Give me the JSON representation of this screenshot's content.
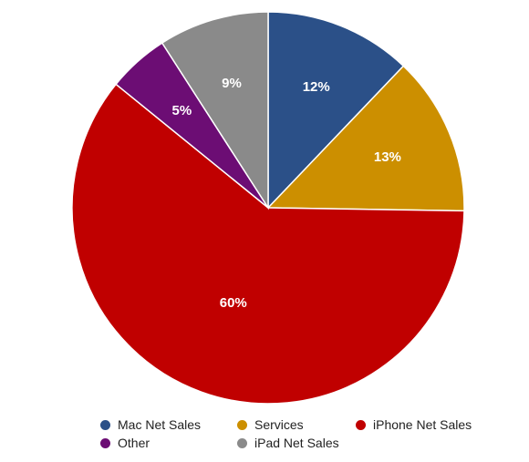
{
  "chart_data": {
    "type": "pie",
    "title": "",
    "start_angle_deg": 0,
    "direction": "clockwise",
    "slices": [
      {
        "label": "Mac Net Sales",
        "value": 12,
        "display": "12%",
        "color": "#2b5088"
      },
      {
        "label": "Services",
        "value": 13,
        "display": "13%",
        "color": "#cc8f00"
      },
      {
        "label": "iPhone Net Sales",
        "value": 60,
        "display": "60%",
        "color": "#c00000"
      },
      {
        "label": "Other",
        "value": 5,
        "display": "5%",
        "color": "#6c0d74"
      },
      {
        "label": "iPad Net Sales",
        "value": 9,
        "display": "9%",
        "color": "#8a8a8a"
      }
    ],
    "legend": {
      "placement": "bottom",
      "order": [
        "Mac Net Sales",
        "Services",
        "iPhone Net Sales",
        "Other",
        "iPad Net Sales"
      ]
    }
  }
}
